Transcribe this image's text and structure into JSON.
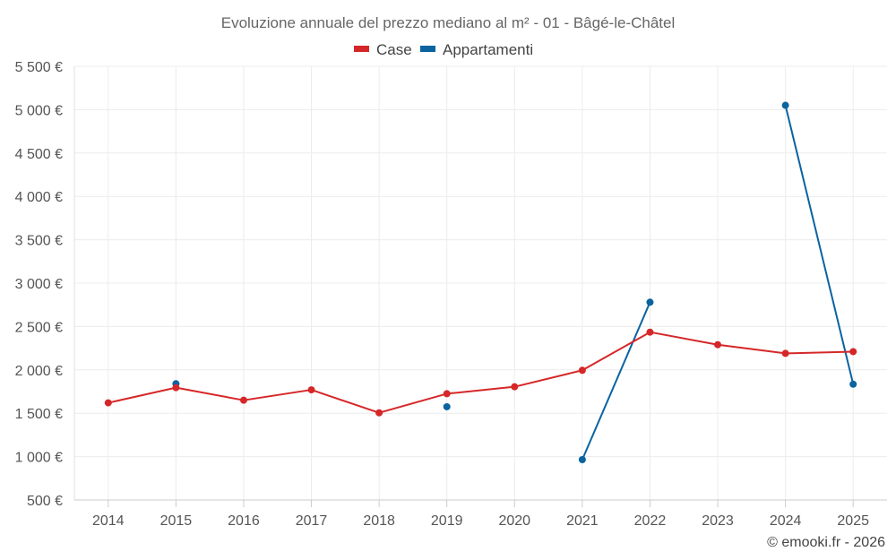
{
  "chart_data": {
    "type": "line",
    "title": "Evoluzione annuale del prezzo mediano al m² - 01 - Bâgé-le-Châtel",
    "categories": [
      "2014",
      "2015",
      "2016",
      "2017",
      "2018",
      "2019",
      "2020",
      "2021",
      "2022",
      "2023",
      "2024",
      "2025"
    ],
    "y_ticks": [
      500,
      1000,
      1500,
      2000,
      2500,
      3000,
      3500,
      4000,
      4500,
      5000,
      5500
    ],
    "y_tick_labels": [
      "500 €",
      "1 000 €",
      "1 500 €",
      "2 000 €",
      "2 500 €",
      "3 000 €",
      "3 500 €",
      "4 000 €",
      "4 500 €",
      "5 000 €",
      "5 500 €"
    ],
    "ylim": [
      500,
      5500
    ],
    "grid": true,
    "legend_position": "top-center",
    "series": [
      {
        "name": "Case",
        "color": "#d62728",
        "values": [
          1620,
          1795,
          1650,
          1770,
          1505,
          1725,
          1805,
          1995,
          2435,
          2290,
          2190,
          2210
        ]
      },
      {
        "name": "Appartamenti",
        "color": "#0b63a0",
        "values": [
          null,
          1840,
          null,
          null,
          null,
          1575,
          null,
          965,
          2780,
          null,
          5050,
          1835
        ]
      }
    ],
    "credit": "© emooki.fr - 2026"
  }
}
